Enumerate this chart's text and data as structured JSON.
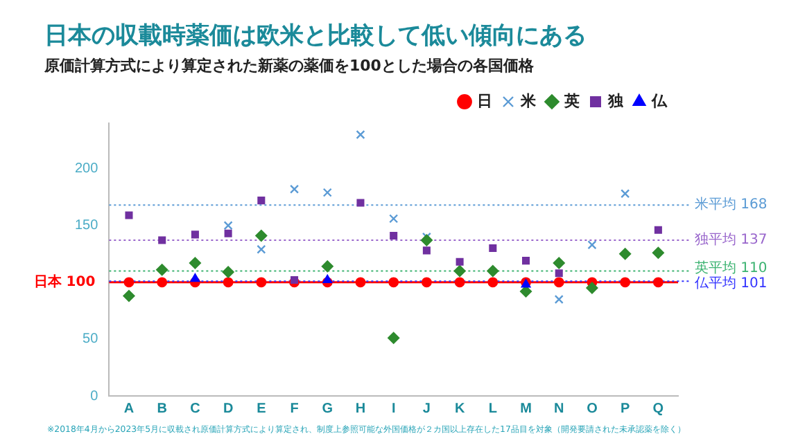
{
  "chart_data": {
    "type": "scatter",
    "title": "日本の収載時薬価は欧米と比較して低い傾向にある",
    "subtitle": "原価計算方式により算定された新薬の薬価を100とした場合の各国価格",
    "categories": [
      "A",
      "B",
      "C",
      "D",
      "E",
      "F",
      "G",
      "H",
      "I",
      "J",
      "K",
      "L",
      "M",
      "N",
      "O",
      "P",
      "Q"
    ],
    "series": [
      {
        "name": "日",
        "color": "#ff0000",
        "marker": "circle",
        "values": [
          100,
          100,
          100,
          100,
          100,
          100,
          100,
          100,
          100,
          100,
          100,
          100,
          100,
          100,
          100,
          100,
          100
        ]
      },
      {
        "name": "米",
        "color": "#5b9bd5",
        "marker": "cross",
        "values": [
          null,
          null,
          null,
          150,
          129,
          182,
          179,
          230,
          156,
          140,
          null,
          null,
          null,
          85,
          133,
          178,
          null
        ]
      },
      {
        "name": "英",
        "color": "#2e8b2e",
        "marker": "diamond",
        "values": [
          88,
          111,
          117,
          109,
          141,
          null,
          114,
          null,
          51,
          137,
          110,
          110,
          92,
          117,
          95,
          125,
          126
        ]
      },
      {
        "name": "独",
        "color": "#7030a0",
        "marker": "square",
        "values": [
          159,
          137,
          142,
          143,
          172,
          102,
          null,
          170,
          141,
          128,
          118,
          130,
          119,
          108,
          null,
          null,
          146
        ]
      },
      {
        "name": "仏",
        "color": "#0000ff",
        "marker": "triangle",
        "values": [
          null,
          null,
          103,
          null,
          null,
          null,
          102,
          null,
          null,
          null,
          null,
          null,
          98,
          null,
          null,
          null,
          null
        ]
      }
    ],
    "ylim": [
      0,
      240
    ],
    "yticks": [
      0,
      50,
      150,
      200
    ],
    "grid": false,
    "legend": "top right",
    "ref_lines": [
      {
        "axis": "y",
        "value": 100,
        "label": "日本 100",
        "color": "#ff0000",
        "line_style": "solid"
      },
      {
        "axis": "y",
        "value": 168,
        "label": "米平均 168",
        "color": "#5b9bd5",
        "line_style": "dotted"
      },
      {
        "axis": "y",
        "value": 137,
        "label": "独平均 137",
        "color": "#9966cc",
        "line_style": "dotted"
      },
      {
        "axis": "y",
        "value": 110,
        "label": "英平均 110",
        "color": "#3cb371",
        "line_style": "dotted"
      },
      {
        "axis": "y",
        "value": 101,
        "label": "仏平均 101",
        "color": "#3333ff",
        "line_style": "dotted"
      }
    ],
    "annotations": [
      "※2018年4月から2023年5月に収載され原価計算方式により算定され、制度上参照可能な外国価格が２カ国以上存在した17品目を対象（開発要請された未承認薬を除く）"
    ]
  }
}
